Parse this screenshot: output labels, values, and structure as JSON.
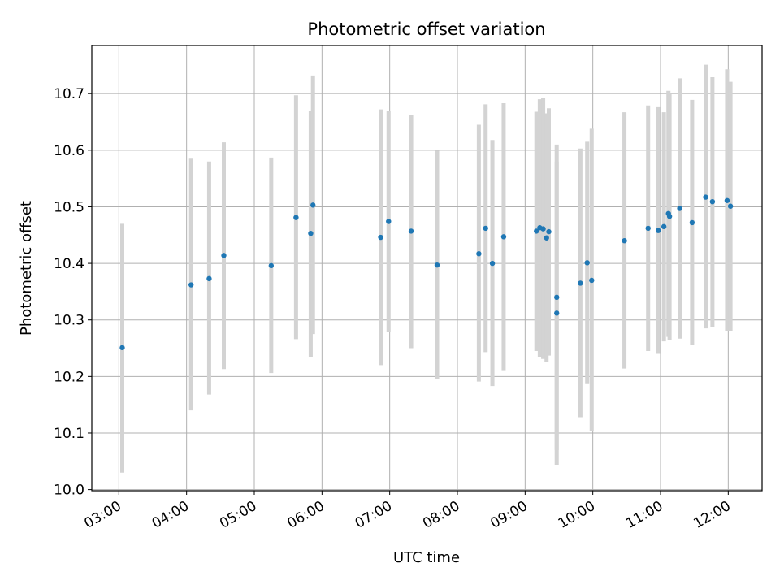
{
  "chart_data": {
    "type": "scatter",
    "title": "Photometric offset variation",
    "xlabel": "UTC time",
    "ylabel": "Photometric offset",
    "x_tick_labels": [
      "03:00",
      "04:00",
      "05:00",
      "06:00",
      "07:00",
      "08:00",
      "09:00",
      "10:00",
      "11:00",
      "12:00"
    ],
    "y_tick_labels": [
      "10.0",
      "10.1",
      "10.2",
      "10.3",
      "10.4",
      "10.5",
      "10.6",
      "10.7"
    ],
    "xlim": [
      "02:36",
      "12:30"
    ],
    "ylim": [
      9.998,
      10.785
    ],
    "grid": true,
    "point_color": "#1f77b4",
    "errorbar_color": "#d3d3d3",
    "points": [
      {
        "x": "03:03",
        "y": 10.251,
        "yerr_low": 10.03,
        "yerr_high": 10.47
      },
      {
        "x": "04:04",
        "y": 10.362,
        "yerr_low": 10.14,
        "yerr_high": 10.585
      },
      {
        "x": "04:20",
        "y": 10.373,
        "yerr_low": 10.168,
        "yerr_high": 10.58
      },
      {
        "x": "04:33",
        "y": 10.414,
        "yerr_low": 10.213,
        "yerr_high": 10.614
      },
      {
        "x": "05:15",
        "y": 10.396,
        "yerr_low": 10.206,
        "yerr_high": 10.587
      },
      {
        "x": "05:37",
        "y": 10.481,
        "yerr_low": 10.266,
        "yerr_high": 10.697
      },
      {
        "x": "05:50",
        "y": 10.453,
        "yerr_low": 10.235,
        "yerr_high": 10.67
      },
      {
        "x": "05:52",
        "y": 10.503,
        "yerr_low": 10.275,
        "yerr_high": 10.732
      },
      {
        "x": "06:52",
        "y": 10.446,
        "yerr_low": 10.22,
        "yerr_high": 10.672
      },
      {
        "x": "06:59",
        "y": 10.474,
        "yerr_low": 10.278,
        "yerr_high": 10.669
      },
      {
        "x": "07:19",
        "y": 10.457,
        "yerr_low": 10.25,
        "yerr_high": 10.663
      },
      {
        "x": "07:42",
        "y": 10.397,
        "yerr_low": 10.196,
        "yerr_high": 10.599
      },
      {
        "x": "08:19",
        "y": 10.417,
        "yerr_low": 10.191,
        "yerr_high": 10.645
      },
      {
        "x": "08:25",
        "y": 10.462,
        "yerr_low": 10.243,
        "yerr_high": 10.681
      },
      {
        "x": "08:31",
        "y": 10.4,
        "yerr_low": 10.183,
        "yerr_high": 10.618
      },
      {
        "x": "08:41",
        "y": 10.447,
        "yerr_low": 10.211,
        "yerr_high": 10.683
      },
      {
        "x": "09:10",
        "y": 10.457,
        "yerr_low": 10.245,
        "yerr_high": 10.668
      },
      {
        "x": "09:13",
        "y": 10.463,
        "yerr_low": 10.235,
        "yerr_high": 10.69
      },
      {
        "x": "09:16",
        "y": 10.461,
        "yerr_low": 10.231,
        "yerr_high": 10.692
      },
      {
        "x": "09:19",
        "y": 10.445,
        "yerr_low": 10.226,
        "yerr_high": 10.665
      },
      {
        "x": "09:21",
        "y": 10.456,
        "yerr_low": 10.237,
        "yerr_high": 10.674
      },
      {
        "x": "09:28",
        "y": 10.34,
        "yerr_low": 10.07,
        "yerr_high": 10.61
      },
      {
        "x": "09:28",
        "y": 10.312,
        "yerr_low": 10.044,
        "yerr_high": 10.58
      },
      {
        "x": "09:49",
        "y": 10.365,
        "yerr_low": 10.128,
        "yerr_high": 10.603
      },
      {
        "x": "09:55",
        "y": 10.401,
        "yerr_low": 10.188,
        "yerr_high": 10.615
      },
      {
        "x": "09:59",
        "y": 10.37,
        "yerr_low": 10.104,
        "yerr_high": 10.638
      },
      {
        "x": "10:28",
        "y": 10.44,
        "yerr_low": 10.214,
        "yerr_high": 10.667
      },
      {
        "x": "10:49",
        "y": 10.462,
        "yerr_low": 10.245,
        "yerr_high": 10.679
      },
      {
        "x": "10:58",
        "y": 10.458,
        "yerr_low": 10.24,
        "yerr_high": 10.676
      },
      {
        "x": "11:03",
        "y": 10.465,
        "yerr_low": 10.262,
        "yerr_high": 10.667
      },
      {
        "x": "11:07",
        "y": 10.488,
        "yerr_low": 10.27,
        "yerr_high": 10.705
      },
      {
        "x": "11:08",
        "y": 10.483,
        "yerr_low": 10.265,
        "yerr_high": 10.7
      },
      {
        "x": "11:17",
        "y": 10.497,
        "yerr_low": 10.267,
        "yerr_high": 10.727
      },
      {
        "x": "11:28",
        "y": 10.472,
        "yerr_low": 10.256,
        "yerr_high": 10.689
      },
      {
        "x": "11:40",
        "y": 10.517,
        "yerr_low": 10.285,
        "yerr_high": 10.751
      },
      {
        "x": "11:46",
        "y": 10.509,
        "yerr_low": 10.288,
        "yerr_high": 10.729
      },
      {
        "x": "11:59",
        "y": 10.511,
        "yerr_low": 10.281,
        "yerr_high": 10.743
      },
      {
        "x": "12:02",
        "y": 10.501,
        "yerr_low": 10.281,
        "yerr_high": 10.721
      }
    ]
  }
}
